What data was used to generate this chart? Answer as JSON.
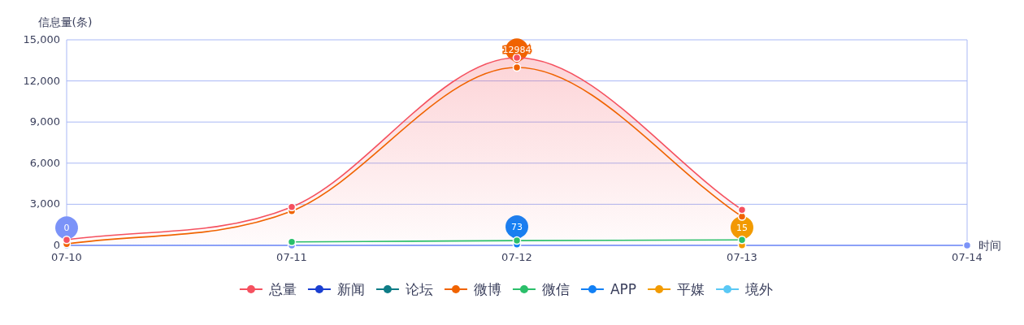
{
  "chart_data": {
    "type": "line",
    "ylabel": "信息量(条)",
    "xlabel": "时间",
    "categories": [
      "07-10",
      "07-11",
      "07-12",
      "07-13",
      "07-14"
    ],
    "ylim": [
      0,
      15000
    ],
    "yticks": [
      0,
      {
        "value": 3000,
        "label": "3,000"
      },
      {
        "value": 6000,
        "label": "6,000"
      },
      {
        "value": 9000,
        "label": "9,000"
      },
      {
        "value": 12000,
        "label": "12,000"
      },
      {
        "value": 15000,
        "label": "15,000"
      }
    ],
    "grid": "y",
    "legend": "bottom",
    "marker": "circle",
    "line_style": "solid",
    "series": [
      {
        "name": "总量",
        "type": "area",
        "color": "#f5515f",
        "values": [
          400,
          2800,
          13700,
          2600,
          null
        ]
      },
      {
        "name": "新闻",
        "color": "#1a3fd1",
        "values": [
          null,
          null,
          null,
          null,
          null
        ]
      },
      {
        "name": "论坛",
        "color": "#0e7c86",
        "values": [
          null,
          null,
          null,
          null,
          null
        ]
      },
      {
        "name": "微博",
        "color": "#f06300",
        "values": [
          100,
          2500,
          12984,
          2100,
          null
        ]
      },
      {
        "name": "微信",
        "color": "#2bbf6a",
        "values": [
          null,
          250,
          350,
          400,
          null
        ]
      },
      {
        "name": "APP",
        "color": "#1280f5",
        "values": [
          null,
          null,
          73,
          null,
          null
        ]
      },
      {
        "name": "平媒",
        "color": "#f29b00",
        "values": [
          null,
          null,
          null,
          15,
          null
        ]
      },
      {
        "name": "境外",
        "color": "#5ac8f5",
        "values": [
          null,
          null,
          null,
          null,
          null
        ]
      },
      {
        "color": "#7b93f8",
        "values": [
          0,
          0,
          0,
          0,
          0
        ]
      }
    ],
    "annotations": [
      {
        "text": "12984",
        "x": "07-12",
        "y": 12984
      },
      {
        "text": "73",
        "x": "07-12",
        "y": 73
      },
      {
        "text": "15",
        "x": "07-13",
        "y": 15
      },
      {
        "text": "0",
        "x": "07-10",
        "y": 0
      }
    ]
  }
}
